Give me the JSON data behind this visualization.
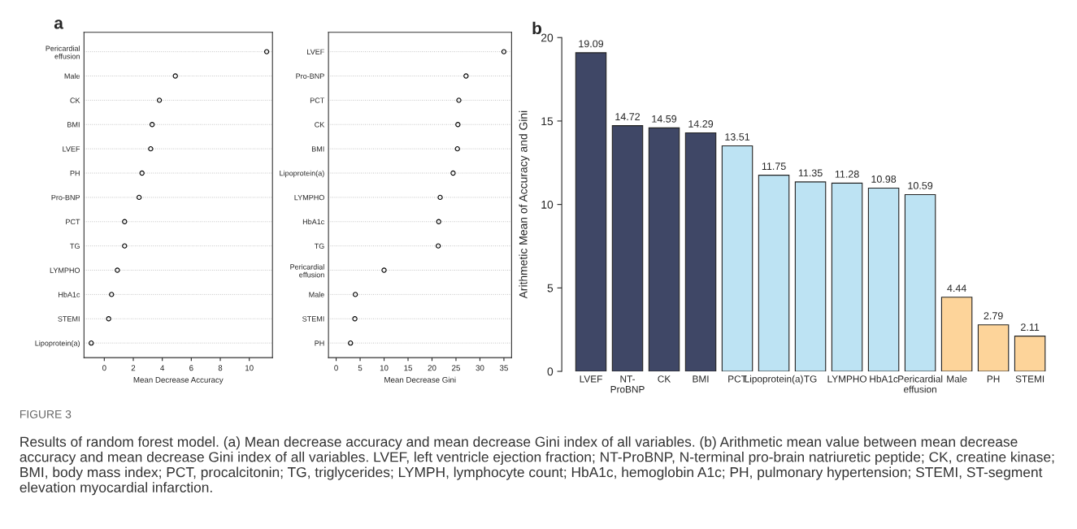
{
  "chart_data": [
    {
      "type": "scatter",
      "orientation": "horizontal",
      "title": "a",
      "xlabel": "Mean Decrease Accuracy",
      "categories": [
        "Pericardial\neffusion",
        "Male",
        "CK",
        "BMI",
        "LVEF",
        "PH",
        "Pro-BNP",
        "PCT",
        "TG",
        "LYMPHO",
        "HbA1c",
        "STEMI",
        "Lipoprotein(a)"
      ],
      "values": [
        11.2,
        4.9,
        3.8,
        3.3,
        3.2,
        2.6,
        2.4,
        1.4,
        1.4,
        0.9,
        0.5,
        0.3,
        -0.9
      ],
      "xlim": [
        -1.4,
        11.6
      ],
      "xticks": [
        0,
        2,
        4,
        6,
        8,
        10
      ],
      "grid": "y",
      "marker": "circle"
    },
    {
      "type": "scatter",
      "orientation": "horizontal",
      "xlabel": "Mean Decrease Gini",
      "categories": [
        "LVEF",
        "Pro-BNP",
        "PCT",
        "CK",
        "BMI",
        "Lipoprotein(a)",
        "LYMPHO",
        "HbA1c",
        "TG",
        "Pericardial\neffusion",
        "Male",
        "STEMI",
        "PH"
      ],
      "values": [
        35.0,
        27.1,
        25.6,
        25.4,
        25.3,
        24.4,
        21.7,
        21.4,
        21.3,
        10.0,
        4.0,
        3.9,
        3.0
      ],
      "xlim": [
        -1.6,
        36.6
      ],
      "xticks": [
        0,
        5,
        10,
        15,
        20,
        25,
        30,
        35
      ],
      "grid": "y",
      "marker": "circle"
    },
    {
      "type": "bar",
      "title": "b",
      "ylabel": "Arithmetic Mean of Accuracy and Gini",
      "categories": [
        "LVEF",
        "NT-\nProBNP",
        "CK",
        "BMI",
        "PCT",
        "Lipoprotein(a)",
        "TG",
        "LYMPHO",
        "HbA1c",
        "Pericardial\neffusion",
        "Male",
        "PH",
        "STEMI"
      ],
      "values": [
        19.09,
        14.72,
        14.59,
        14.29,
        13.51,
        11.75,
        11.35,
        11.28,
        10.98,
        10.59,
        4.44,
        2.79,
        2.11
      ],
      "colors": [
        "#3f4766",
        "#3f4766",
        "#3f4766",
        "#3f4766",
        "#bde3f3",
        "#bde3f3",
        "#bde3f3",
        "#bde3f3",
        "#bde3f3",
        "#bde3f3",
        "#fdd49a",
        "#fdd49a",
        "#fdd49a"
      ],
      "ylim": [
        0,
        20
      ],
      "yticks": [
        0,
        5,
        10,
        15,
        20
      ],
      "data_labels": true,
      "annotations": [
        "FIGURE 3",
        "Results of random forest model. (a) Mean decrease accuracy and mean decrease Gini index of all variables. (b) Arithmetic mean value between mean decrease accuracy and mean decrease Gini index of all variables. LVEF, left ventricle ejection fraction; NT-ProBNP, N-terminal pro-brain natriuretic peptide; CK, creatine kinase; BMI, body mass index; PCT, procalcitonin; TG, triglycerides; LYMPH, lymphocyte count; HbA1c, hemoglobin A1c; PH, pulmonary hypertension; STEMI, ST-segment elevation myocardial infarction."
      ]
    }
  ]
}
